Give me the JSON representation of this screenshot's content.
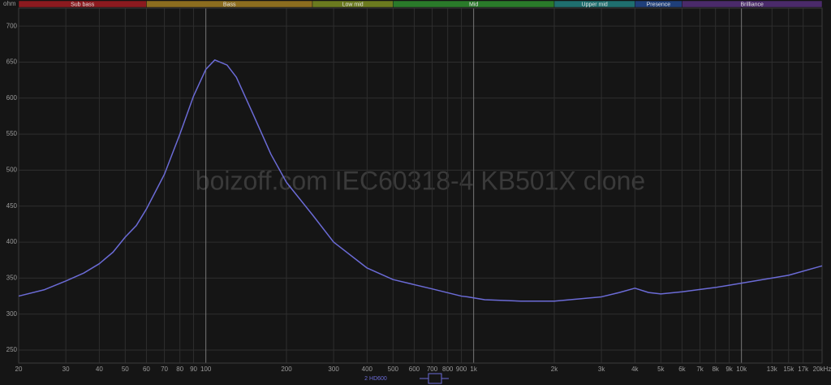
{
  "chart_data": {
    "type": "line",
    "y_unit": "ohm",
    "watermark": "boizoff.com IEC60318-4 KB501X clone",
    "xscale": "log",
    "xlim": [
      20,
      20000
    ],
    "ylim": [
      232,
      725
    ],
    "grid": true,
    "bands": [
      {
        "name": "Sub bass",
        "from": 20,
        "to": 60,
        "color": "#8b1a1f"
      },
      {
        "name": "Bass",
        "from": 60,
        "to": 250,
        "color": "#8c6d1f"
      },
      {
        "name": "Low mid",
        "from": 250,
        "to": 500,
        "color": "#6b7a1f"
      },
      {
        "name": "Mid",
        "from": 500,
        "to": 2000,
        "color": "#2a7a2a"
      },
      {
        "name": "Upper mid",
        "from": 2000,
        "to": 4000,
        "color": "#1f6f6f"
      },
      {
        "name": "Presence",
        "from": 4000,
        "to": 6000,
        "color": "#1f3f7a"
      },
      {
        "name": "Brilliance",
        "from": 6000,
        "to": 20000,
        "color": "#4a2a6a"
      }
    ],
    "xticks": [
      20,
      30,
      40,
      50,
      60,
      70,
      80,
      90,
      100,
      200,
      300,
      400,
      500,
      600,
      700,
      800,
      900,
      {
        "value": 1000,
        "label": "1k"
      },
      {
        "value": 2000,
        "label": "2k"
      },
      {
        "value": 3000,
        "label": "3k"
      },
      {
        "value": 4000,
        "label": "4k"
      },
      {
        "value": 5000,
        "label": "5k"
      },
      {
        "value": 6000,
        "label": "6k"
      },
      {
        "value": 7000,
        "label": "7k"
      },
      {
        "value": 8000,
        "label": "8k"
      },
      {
        "value": 9000,
        "label": "9k"
      },
      {
        "value": 10000,
        "label": "10k"
      },
      {
        "value": 13000,
        "label": "13k"
      },
      {
        "value": 15000,
        "label": "15k"
      },
      {
        "value": 17000,
        "label": "17k"
      },
      {
        "value": 20000,
        "label": "20kHz"
      }
    ],
    "yticks": [
      250,
      300,
      350,
      400,
      450,
      500,
      550,
      600,
      650,
      700
    ],
    "x": [
      20,
      25,
      30,
      35,
      40,
      45,
      50,
      55,
      60,
      70,
      80,
      90,
      100,
      108,
      120,
      130,
      150,
      175,
      200,
      250,
      300,
      400,
      500,
      700,
      900,
      950,
      1100,
      1500,
      2000,
      3000,
      3500,
      4000,
      4500,
      5000,
      6000,
      8000,
      10000,
      15000,
      20000
    ],
    "series": [
      {
        "name": "2 HD600",
        "color": "#6b6bd6",
        "values": [
          325,
          334,
          346,
          357,
          370,
          386,
          407,
          423,
          446,
          494,
          550,
          603,
          640,
          653,
          646,
          629,
          578,
          522,
          483,
          438,
          400,
          364,
          348,
          335,
          325,
          324,
          320,
          318,
          318,
          324,
          330,
          336,
          330,
          328,
          331,
          337,
          343,
          354,
          367
        ]
      }
    ]
  }
}
